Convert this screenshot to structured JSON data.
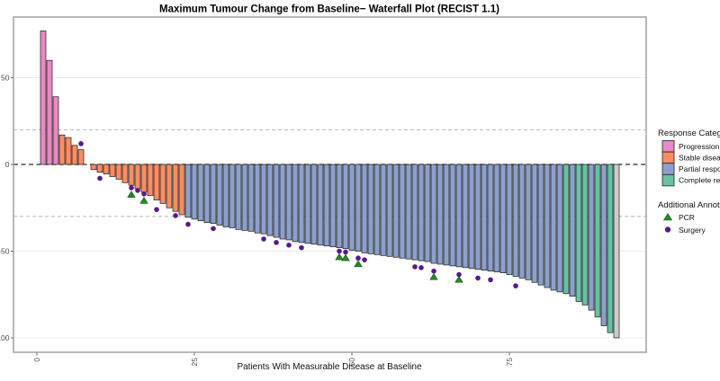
{
  "title": "Maximum Tumour Change from Baseline− Waterfall Plot (RECIST 1.1)",
  "x_axis": {
    "label": "Patients With Measurable Disease at Baseline",
    "ticks": [
      0,
      25,
      50,
      75
    ]
  },
  "y_axis": {
    "ticks": [
      50,
      0,
      -50,
      -100
    ]
  },
  "reference_lines": {
    "zero_line": 0,
    "upper_dashed": 20,
    "lower_dashed": -30
  },
  "legend": {
    "response_title": "Response Category",
    "annotation_title": "Additional Annotations",
    "categories": [
      {
        "code": "P",
        "label": "Progression",
        "color": "#E78AC3"
      },
      {
        "code": "S",
        "label": "Stable disease",
        "color": "#FC8D62"
      },
      {
        "code": "B",
        "label": "Partial response",
        "color": "#8DA0CB"
      },
      {
        "code": "C",
        "label": "Complete response",
        "color": "#66C2A5"
      }
    ],
    "annotations": [
      {
        "type": "pcr",
        "label": "PCR",
        "color": "#228B22"
      },
      {
        "type": "surgery",
        "label": "Surgery",
        "color": "#551A8B"
      }
    ]
  },
  "chart_data": {
    "type": "bar",
    "title": "Maximum Tumour Change from Baseline− Waterfall Plot (RECIST 1.1)",
    "xlabel": "Patients With Measurable Disease at Baseline",
    "ylabel": "",
    "ylim": [
      -105,
      85
    ],
    "xlim": [
      0,
      96
    ],
    "grid": "horizontal-only",
    "legend_position": "right",
    "categories_key": "P=Progression, S=Stable disease, B=Partial response, C=Complete response",
    "bar_categories": "PPPSSSSSSSSSSSSSSSSSSSSBBBBBBBBBBBBBBBBBBBBBBBBBBBBBBBBBBBBBBBBBBBBBBBBBBBBBBBBBBBBCBCCBCBC",
    "values": [
      77,
      60,
      39,
      17,
      15.5,
      11,
      8.5,
      0,
      -3,
      -4.5,
      -5.5,
      -7,
      -8.5,
      -10.5,
      -12,
      -14,
      -16,
      -18,
      -20.5,
      -22.5,
      -25,
      -27,
      -29,
      -30.5,
      -31.5,
      -32.5,
      -33.5,
      -34,
      -35,
      -36,
      -36.5,
      -37.5,
      -38,
      -38.5,
      -39.5,
      -40,
      -41,
      -42,
      -43,
      -43.5,
      -44.5,
      -45,
      -45.5,
      -46,
      -46.5,
      -47,
      -47.5,
      -48,
      -48.5,
      -49.5,
      -50,
      -51,
      -51.5,
      -52,
      -52.5,
      -53,
      -53.5,
      -54,
      -54.5,
      -55,
      -55.5,
      -56,
      -57,
      -57.5,
      -58,
      -58.5,
      -59,
      -59.5,
      -60,
      -60.5,
      -61,
      -61.5,
      -62,
      -62.5,
      -63.5,
      -64.5,
      -65.5,
      -66.5,
      -68,
      -69.5,
      -71,
      -72.5,
      -73.5,
      -74.5,
      -76,
      -79,
      -81,
      -84,
      -88,
      -93,
      -97,
      -100
    ],
    "annotations": [
      {
        "patient": 7,
        "type": "surgery",
        "value": 12
      },
      {
        "patient": 10,
        "type": "surgery",
        "value": -8
      },
      {
        "patient": 15,
        "type": "surgery",
        "value": -13.5
      },
      {
        "patient": 15,
        "type": "pcr",
        "value": -17.5
      },
      {
        "patient": 16,
        "type": "surgery",
        "value": -15
      },
      {
        "patient": 17,
        "type": "surgery",
        "value": -17
      },
      {
        "patient": 17,
        "type": "pcr",
        "value": -21
      },
      {
        "patient": 19,
        "type": "surgery",
        "value": -26
      },
      {
        "patient": 22,
        "type": "surgery",
        "value": -29.5
      },
      {
        "patient": 24,
        "type": "surgery",
        "value": -34.5
      },
      {
        "patient": 28,
        "type": "surgery",
        "value": -37
      },
      {
        "patient": 36,
        "type": "surgery",
        "value": -43
      },
      {
        "patient": 38,
        "type": "surgery",
        "value": -45
      },
      {
        "patient": 40,
        "type": "surgery",
        "value": -46.5
      },
      {
        "patient": 42,
        "type": "surgery",
        "value": -48
      },
      {
        "patient": 48,
        "type": "surgery",
        "value": -50
      },
      {
        "patient": 48,
        "type": "pcr",
        "value": -53.5
      },
      {
        "patient": 49,
        "type": "surgery",
        "value": -50.5
      },
      {
        "patient": 49,
        "type": "pcr",
        "value": -54
      },
      {
        "patient": 51,
        "type": "surgery",
        "value": -54
      },
      {
        "patient": 51,
        "type": "pcr",
        "value": -57.5
      },
      {
        "patient": 52,
        "type": "surgery",
        "value": -55
      },
      {
        "patient": 60,
        "type": "surgery",
        "value": -59
      },
      {
        "patient": 61,
        "type": "surgery",
        "value": -59.5
      },
      {
        "patient": 63,
        "type": "surgery",
        "value": -61.5
      },
      {
        "patient": 63,
        "type": "pcr",
        "value": -65
      },
      {
        "patient": 67,
        "type": "surgery",
        "value": -63.5
      },
      {
        "patient": 67,
        "type": "pcr",
        "value": -66.5
      },
      {
        "patient": 70,
        "type": "surgery",
        "value": -65.5
      },
      {
        "patient": 72,
        "type": "surgery",
        "value": -66.5
      },
      {
        "patient": 76,
        "type": "surgery",
        "value": -70
      }
    ]
  }
}
